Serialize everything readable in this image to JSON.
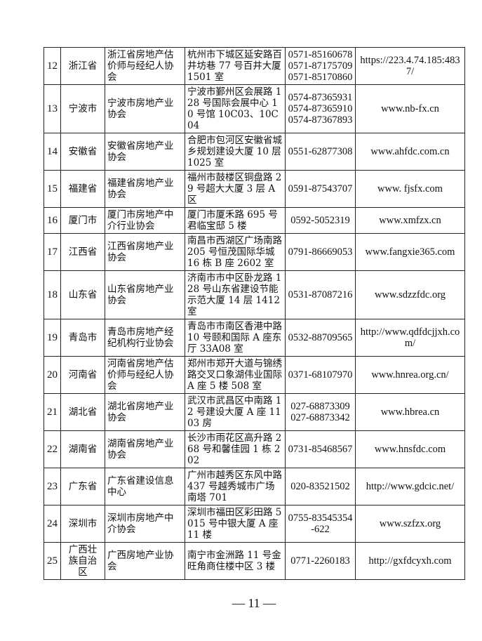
{
  "rows": [
    {
      "no": "12",
      "province": "浙江省",
      "org": "浙江省房地产估价师与经纪人协会",
      "address": "杭州市下城区延安路百井坊巷 77 号百井大厦 1501 室",
      "phones": [
        "0571-85160678",
        "0571-87175709",
        "0571-85170860"
      ],
      "website": "https://223.4.74.185:4837/"
    },
    {
      "no": "13",
      "province": "宁波市",
      "org": "宁波市房地产业协会",
      "address": "宁波市鄞州区会展路 128 号国际会展中心 10 号馆 10C03、10C04",
      "phones": [
        "0574-87365931",
        "0574-87365910",
        "0574-87367893"
      ],
      "website": "www.nb-fx.cn"
    },
    {
      "no": "14",
      "province": "安徽省",
      "org": "安徽省房地产业协会",
      "address": "合肥市包河区安徽省城乡规划建设大厦 10 层 1025 室",
      "phones": [
        "0551-62877308"
      ],
      "website": "www.ahfdc.com.cn"
    },
    {
      "no": "15",
      "province": "福建省",
      "org": "福建省房地产业协会",
      "address": "福州市鼓楼区铜盘路 29 号超大大厦 3 层 A 区",
      "phones": [
        "0591-87543707"
      ],
      "website": "www. fjsfx.com"
    },
    {
      "no": "16",
      "province": "厦门市",
      "org": "厦门市房地产中介行业协会",
      "address": "厦门市厦禾路 695 号君临宝邸 5 楼",
      "phones": [
        "0592-5052319"
      ],
      "website": "www.xmfzx.cn"
    },
    {
      "no": "17",
      "province": "江西省",
      "org": "江西省房地产业协会",
      "address": "南昌市西湖区广场南路 205 号恒茂国际华城 16 栋 B 座 2602 室",
      "phones": [
        "0791-86669053"
      ],
      "website": "www.fangxie365.com"
    },
    {
      "no": "18",
      "province": "山东省",
      "org": "山东省房地产业协会",
      "address": "济南市市中区卧龙路 128 号山东省建设节能示范大厦 14 层 1412 室",
      "phones": [
        "0531-87087216"
      ],
      "website": "www.sdzzfdc.org"
    },
    {
      "no": "19",
      "province": "青岛市",
      "org": "青岛市房地产经纪机构行业协会",
      "address": "青岛市市南区香港中路 10 号颐和国际 A 座东厅 33A08 室",
      "phones": [
        "0532-88709565"
      ],
      "website": "http://www.qdfdcjjxh.com/"
    },
    {
      "no": "20",
      "province": "河南省",
      "org": "河南省房地产估价师与经纪人协会",
      "address": "郑州市郑开大道与锦绣路交叉口象湖伟业国际 A 座 5 楼 508 室",
      "phones": [
        "0371-68107970"
      ],
      "website": "www.hnrea.org.cn/"
    },
    {
      "no": "21",
      "province": "湖北省",
      "org": "湖北省房地产业协会",
      "address": "武汉市武昌区中南路 12 号建设大厦 A 座 1103 房",
      "phones": [
        "027-68873309",
        "027-68873342"
      ],
      "website": "www.hbrea.cn"
    },
    {
      "no": "22",
      "province": "湖南省",
      "org": "湖南省房地产业协会",
      "address": "长沙市雨花区高升路 268 号和馨佳园 1 栋 202",
      "phones": [
        "0731-85468567"
      ],
      "website": "www.hnsfdc.com"
    },
    {
      "no": "23",
      "province": "广东省",
      "org": "广东省建设信息中心",
      "address": "广州市越秀区东风中路 437 号越秀城市广场南塔 701",
      "phones": [
        "020-83521502"
      ],
      "website": "http://www.gdcic.net/"
    },
    {
      "no": "24",
      "province": "深圳市",
      "org": "深圳市房地产中介协会",
      "address": "深圳市福田区彩田路 5015 号中银大厦 A 座 11 楼",
      "phones": [
        "0755-83545354-622"
      ],
      "website": "www.szfzx.org"
    },
    {
      "no": "25",
      "province": "广西壮族自治区",
      "org": "广西房地产业协会",
      "address": "南宁市金洲路 11 号金旺角商住楼中区 3 楼",
      "phones": [
        "0771-2260183"
      ],
      "website": "http://gxfdcyxh.com"
    }
  ],
  "page_number": "— 11 —"
}
